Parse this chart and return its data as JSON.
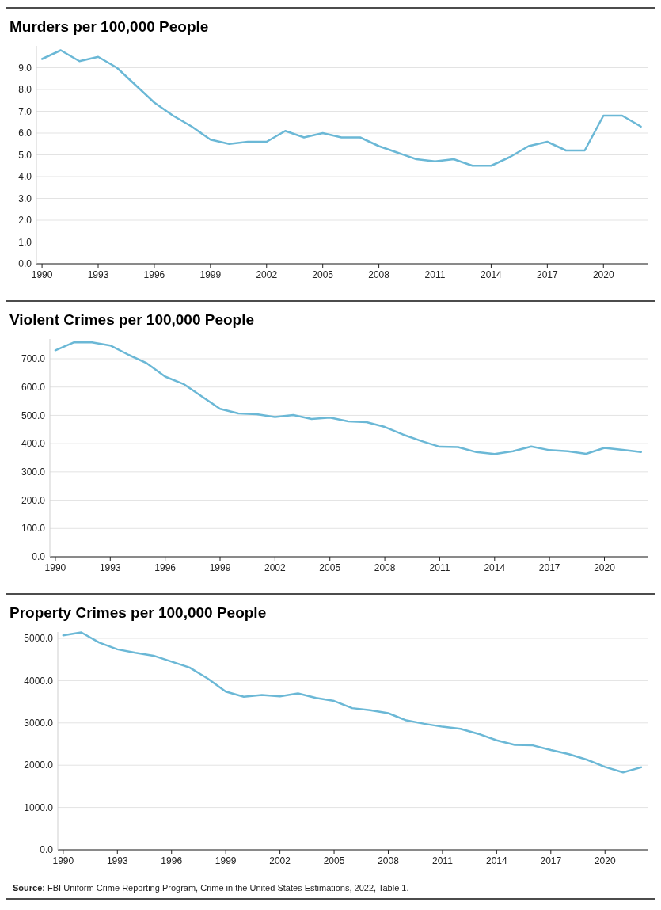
{
  "chart_data": [
    {
      "type": "line",
      "title": "Murders per 100,000 People",
      "x": [
        1990,
        1991,
        1992,
        1993,
        1994,
        1995,
        1996,
        1997,
        1998,
        1999,
        2000,
        2001,
        2002,
        2003,
        2004,
        2005,
        2006,
        2007,
        2008,
        2009,
        2010,
        2011,
        2012,
        2013,
        2014,
        2015,
        2016,
        2017,
        2018,
        2019,
        2020,
        2021,
        2022
      ],
      "series": [
        {
          "color": "#6bb8d6",
          "values": [
            9.4,
            9.8,
            9.3,
            9.5,
            9.0,
            8.2,
            7.4,
            6.8,
            6.3,
            5.7,
            5.5,
            5.6,
            5.6,
            6.1,
            5.8,
            6.0,
            5.8,
            5.8,
            5.4,
            5.1,
            4.8,
            4.7,
            4.8,
            4.5,
            4.5,
            4.9,
            5.4,
            5.6,
            5.2,
            5.2,
            6.8,
            6.8,
            6.3
          ]
        }
      ],
      "xlim": [
        1989.7,
        2022.4
      ],
      "xticks": [
        1990,
        1993,
        1996,
        1999,
        2002,
        2005,
        2008,
        2011,
        2014,
        2017,
        2020
      ],
      "ylim": [
        0,
        10
      ],
      "yticks": [
        {
          "value": 0,
          "label": "0.0"
        },
        {
          "value": 1,
          "label": "1.0"
        },
        {
          "value": 2,
          "label": "2.0"
        },
        {
          "value": 3,
          "label": "3.0"
        },
        {
          "value": 4,
          "label": "4.0"
        },
        {
          "value": 5,
          "label": "5.0"
        },
        {
          "value": 6,
          "label": "6.0"
        },
        {
          "value": 7,
          "label": "7.0"
        },
        {
          "value": 8,
          "label": "8.0"
        },
        {
          "value": 9,
          "label": "9.0"
        }
      ],
      "grid": "y"
    },
    {
      "type": "line",
      "title": "Violent Crimes per 100,000 People",
      "x": [
        1990,
        1991,
        1992,
        1993,
        1994,
        1995,
        1996,
        1997,
        1998,
        1999,
        2000,
        2001,
        2002,
        2003,
        2004,
        2005,
        2006,
        2007,
        2008,
        2009,
        2010,
        2011,
        2012,
        2013,
        2014,
        2015,
        2016,
        2017,
        2018,
        2019,
        2020,
        2021,
        2022
      ],
      "series": [
        {
          "color": "#6bb8d6",
          "values": [
            730,
            758,
            758,
            747,
            714,
            684,
            637,
            611,
            567,
            523,
            507,
            504,
            494,
            501,
            487,
            492,
            479,
            476,
            459,
            432,
            409,
            389,
            388,
            370,
            363,
            373,
            390,
            377,
            373,
            364,
            385,
            378,
            370
          ]
        }
      ],
      "xlim": [
        1989.7,
        2022.4
      ],
      "xticks": [
        1990,
        1993,
        1996,
        1999,
        2002,
        2005,
        2008,
        2011,
        2014,
        2017,
        2020
      ],
      "ylim": [
        0,
        770
      ],
      "yticks": [
        {
          "value": 0,
          "label": "0.0"
        },
        {
          "value": 100,
          "label": "100.0"
        },
        {
          "value": 200,
          "label": "200.0"
        },
        {
          "value": 300,
          "label": "300.0"
        },
        {
          "value": 400,
          "label": "400.0"
        },
        {
          "value": 500,
          "label": "500.0"
        },
        {
          "value": 600,
          "label": "600.0"
        },
        {
          "value": 700,
          "label": "700.0"
        }
      ],
      "grid": "y"
    },
    {
      "type": "line",
      "title": "Property Crimes per 100,000 People",
      "x": [
        1990,
        1991,
        1992,
        1993,
        1994,
        1995,
        1996,
        1997,
        1998,
        1999,
        2000,
        2001,
        2002,
        2003,
        2004,
        2005,
        2006,
        2007,
        2008,
        2009,
        2010,
        2011,
        2012,
        2013,
        2014,
        2015,
        2016,
        2017,
        2018,
        2019,
        2020,
        2021,
        2022
      ],
      "series": [
        {
          "color": "#6bb8d6",
          "values": [
            5070,
            5140,
            4900,
            4740,
            4660,
            4590,
            4450,
            4310,
            4050,
            3740,
            3620,
            3660,
            3630,
            3700,
            3590,
            3520,
            3350,
            3300,
            3230,
            3060,
            2980,
            2910,
            2860,
            2740,
            2590,
            2480,
            2470,
            2360,
            2260,
            2130,
            1960,
            1830,
            1950
          ]
        }
      ],
      "xlim": [
        1989.7,
        2022.4
      ],
      "xticks": [
        1990,
        1993,
        1996,
        1999,
        2002,
        2005,
        2008,
        2011,
        2014,
        2017,
        2020
      ],
      "ylim": [
        0,
        5150
      ],
      "yticks": [
        {
          "value": 0,
          "label": "0.0"
        },
        {
          "value": 1000,
          "label": "1000.0"
        },
        {
          "value": 2000,
          "label": "2000.0"
        },
        {
          "value": 3000,
          "label": "3000.0"
        },
        {
          "value": 4000,
          "label": "4000.0"
        },
        {
          "value": 5000,
          "label": "5000.0"
        }
      ],
      "grid": "y",
      "annotations": [
        "Source: FBI Uniform Crime Reporting Program, Crime in the United States Estimations, 2022, Table 1."
      ]
    }
  ]
}
